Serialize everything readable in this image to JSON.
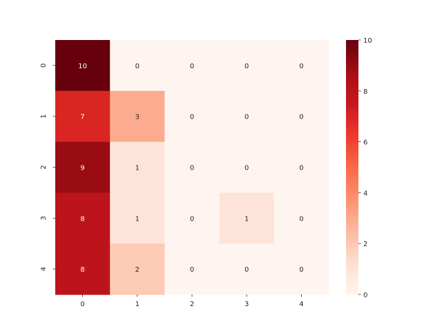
{
  "chart_data": {
    "type": "heatmap",
    "title": "",
    "xlabel": "",
    "ylabel": "",
    "x_categories": [
      "0",
      "1",
      "2",
      "3",
      "4"
    ],
    "y_categories": [
      "0",
      "1",
      "2",
      "3",
      "4"
    ],
    "values": [
      [
        10,
        0,
        0,
        0,
        0
      ],
      [
        7,
        3,
        0,
        0,
        0
      ],
      [
        9,
        1,
        0,
        0,
        0
      ],
      [
        8,
        1,
        0,
        1,
        0
      ],
      [
        8,
        2,
        0,
        0,
        0
      ]
    ],
    "annotate": true,
    "colormap": "Reds",
    "colorbar": {
      "range": [
        0,
        10
      ],
      "ticks": [
        0,
        2,
        4,
        6,
        8,
        10
      ]
    },
    "colors": {
      "low": "#fff5f0",
      "high": "#67000d",
      "text_dark": "#262626",
      "text_light": "#ffffff"
    }
  }
}
